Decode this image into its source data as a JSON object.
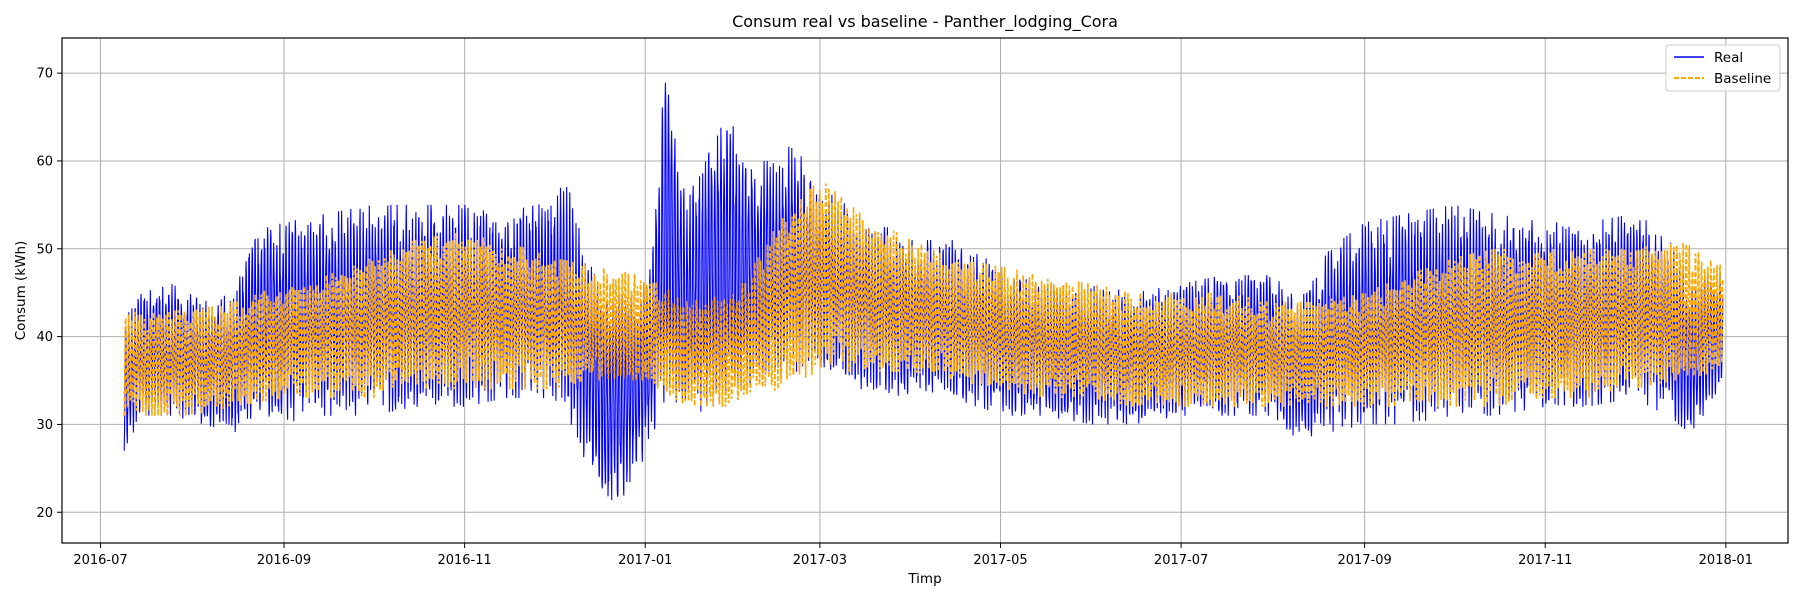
{
  "chart_data": {
    "type": "line",
    "title": "Consum real vs baseline - Panther_lodging_Cora",
    "xlabel": "Timp",
    "ylabel": "Consum (kWh)",
    "x_range": [
      "2016-06-18",
      "2018-01-22"
    ],
    "ylim": [
      16.5,
      74
    ],
    "grid": true,
    "legend_position": "top-right",
    "x_ticks": [
      "2016-07",
      "2016-09",
      "2016-11",
      "2017-01",
      "2017-03",
      "2017-05",
      "2017-07",
      "2017-09",
      "2017-11",
      "2018-01"
    ],
    "y_ticks": [
      20,
      30,
      40,
      50,
      60,
      70
    ],
    "series": [
      {
        "name": "Real",
        "color": "#0000ff",
        "style": "solid",
        "x": [
          "2016-07-09",
          "2016-07-15",
          "2016-07-25",
          "2016-08-05",
          "2016-08-15",
          "2016-08-22",
          "2016-09-01",
          "2016-09-15",
          "2016-10-01",
          "2016-10-15",
          "2016-11-01",
          "2016-11-15",
          "2016-12-01",
          "2016-12-06",
          "2016-12-10",
          "2016-12-15",
          "2016-12-20",
          "2016-12-25",
          "2016-12-30",
          "2017-01-03",
          "2017-01-08",
          "2017-01-15",
          "2017-01-22",
          "2017-01-28",
          "2017-02-05",
          "2017-02-12",
          "2017-02-20",
          "2017-03-01",
          "2017-03-15",
          "2017-04-01",
          "2017-04-15",
          "2017-05-01",
          "2017-05-15",
          "2017-06-01",
          "2017-06-15",
          "2017-07-01",
          "2017-07-15",
          "2017-08-01",
          "2017-08-10",
          "2017-08-20",
          "2017-09-01",
          "2017-09-15",
          "2017-10-01",
          "2017-10-15",
          "2017-11-01",
          "2017-11-15",
          "2017-12-01",
          "2017-12-12",
          "2017-12-20",
          "2017-12-31"
        ],
        "low": [
          27,
          31,
          31,
          30,
          29,
          31,
          30,
          31,
          31,
          32,
          32,
          33,
          33,
          31,
          27,
          24,
          20,
          22,
          25,
          28,
          33,
          32,
          31,
          32,
          34,
          35,
          36,
          36,
          34,
          33,
          33,
          31,
          31,
          30,
          30,
          31,
          31,
          31,
          28,
          29,
          30,
          30,
          31,
          31,
          32,
          32,
          33,
          31,
          29,
          34
        ],
        "high": [
          42,
          45,
          46,
          44,
          45,
          52,
          53,
          54,
          55,
          55,
          55,
          54,
          56,
          58,
          52,
          47,
          44,
          45,
          45,
          48,
          72,
          55,
          62,
          66,
          60,
          60,
          62,
          57,
          54,
          51,
          51,
          48,
          46,
          46,
          45,
          46,
          47,
          47,
          44,
          50,
          53,
          54,
          55,
          54,
          53,
          53,
          54,
          52,
          46,
          48
        ]
      },
      {
        "name": "Baseline",
        "color": "#ffa500",
        "style": "dashed",
        "x": [
          "2016-07-09",
          "2016-07-15",
          "2016-08-01",
          "2016-08-15",
          "2016-09-01",
          "2016-09-15",
          "2016-10-01",
          "2016-10-15",
          "2016-11-01",
          "2016-11-15",
          "2016-12-01",
          "2016-12-15",
          "2017-01-01",
          "2017-01-15",
          "2017-02-01",
          "2017-02-15",
          "2017-03-01",
          "2017-03-15",
          "2017-04-01",
          "2017-04-15",
          "2017-05-01",
          "2017-05-15",
          "2017-06-01",
          "2017-06-15",
          "2017-07-01",
          "2017-07-15",
          "2017-08-01",
          "2017-08-15",
          "2017-09-01",
          "2017-09-15",
          "2017-10-01",
          "2017-10-15",
          "2017-11-01",
          "2017-11-15",
          "2017-12-01",
          "2017-12-15",
          "2017-12-31"
        ],
        "low": [
          31,
          31,
          31,
          32,
          33,
          33,
          33,
          34,
          34,
          34,
          34,
          35,
          35,
          32,
          32,
          34,
          36,
          36,
          36,
          35,
          34,
          33,
          33,
          32,
          32,
          32,
          32,
          32,
          32,
          32,
          32,
          32,
          33,
          33,
          34,
          35,
          36
        ],
        "high": [
          43,
          43,
          43,
          44,
          46,
          47,
          49,
          51,
          52,
          51,
          49,
          48,
          47,
          44,
          45,
          53,
          58,
          54,
          51,
          49,
          48,
          47,
          46,
          45,
          45,
          45,
          44,
          44,
          45,
          47,
          49,
          50,
          50,
          50,
          50,
          51,
          49
        ]
      }
    ]
  }
}
